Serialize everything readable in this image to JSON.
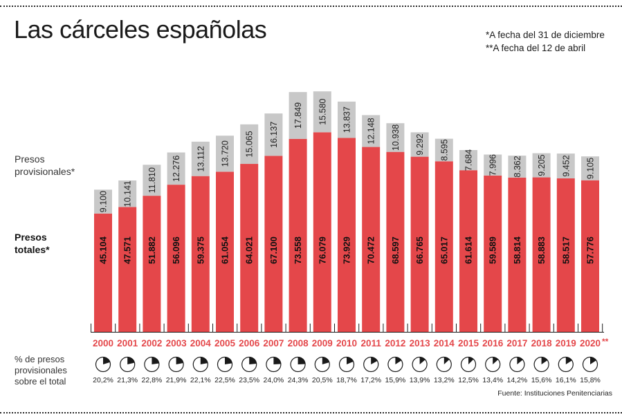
{
  "title": "Las cárceles españolas",
  "notes": [
    "*A fecha del 31 de diciembre",
    "**A fecha del 12 de abril"
  ],
  "labels": {
    "provisionales": [
      "Presos",
      "provisionales*"
    ],
    "totales": [
      "Presos",
      "totales*"
    ],
    "percent": [
      "% de presos",
      "provisionales",
      "sobre el total"
    ]
  },
  "source": "Fuente: Instituciones Penitenciarias",
  "last_year_mark": "**",
  "colors": {
    "totales": "#e4474a",
    "provisionales": "#c8c8c8",
    "year": "#e4474a",
    "pie_fill": "#1a1a1a"
  },
  "chart_data": {
    "type": "bar",
    "stacked": true,
    "categories": [
      "2000",
      "2001",
      "2002",
      "2003",
      "2004",
      "2005",
      "2006",
      "2007",
      "2008",
      "2009",
      "2010",
      "2011",
      "2012",
      "2013",
      "2014",
      "2015",
      "2016",
      "2017",
      "2018",
      "2019",
      "2020"
    ],
    "series": [
      {
        "name": "Presos totales*",
        "values": [
          45104,
          47571,
          51882,
          56096,
          59375,
          61054,
          64021,
          67100,
          73558,
          76079,
          73929,
          70472,
          68597,
          66765,
          65017,
          61614,
          59589,
          58814,
          58883,
          58517,
          57776
        ],
        "labels": [
          "45.104",
          "47.571",
          "51.882",
          "56.096",
          "59.375",
          "61.054",
          "64.021",
          "67.100",
          "73.558",
          "76.079",
          "73.929",
          "70.472",
          "68.597",
          "66.765",
          "65.017",
          "61.614",
          "59.589",
          "58.814",
          "58.883",
          "58.517",
          "57.776"
        ]
      },
      {
        "name": "Presos provisionales*",
        "values": [
          9100,
          10141,
          11810,
          12276,
          13112,
          13720,
          15065,
          16137,
          17849,
          15580,
          13837,
          12148,
          10938,
          9292,
          8595,
          7684,
          7996,
          8362,
          9205,
          9452,
          9105
        ],
        "labels": [
          "9.100",
          "10.141",
          "11.810",
          "12.276",
          "13.112",
          "13.720",
          "15.065",
          "16.137",
          "17.849",
          "15.580",
          "13.837",
          "12.148",
          "10.938",
          "9.292",
          "8.595",
          "7.684",
          "7.996",
          "8.362",
          "9.205",
          "9.452",
          "9.105"
        ]
      }
    ],
    "percent_provisionales": [
      20.2,
      21.3,
      22.8,
      21.9,
      22.1,
      22.5,
      23.5,
      24.0,
      24.3,
      20.5,
      18.7,
      17.2,
      15.9,
      13.9,
      13.2,
      12.5,
      13.4,
      14.2,
      15.6,
      16.1,
      15.8
    ],
    "percent_labels": [
      "20,2%",
      "21,3%",
      "22,8%",
      "21,9%",
      "22,1%",
      "22,5%",
      "23,5%",
      "24,0%",
      "24,3%",
      "20,5%",
      "18,7%",
      "17,2%",
      "15,9%",
      "13,9%",
      "13,2%",
      "12,5%",
      "13,4%",
      "14,2%",
      "15,6%",
      "16,1%",
      "15,8%"
    ]
  }
}
